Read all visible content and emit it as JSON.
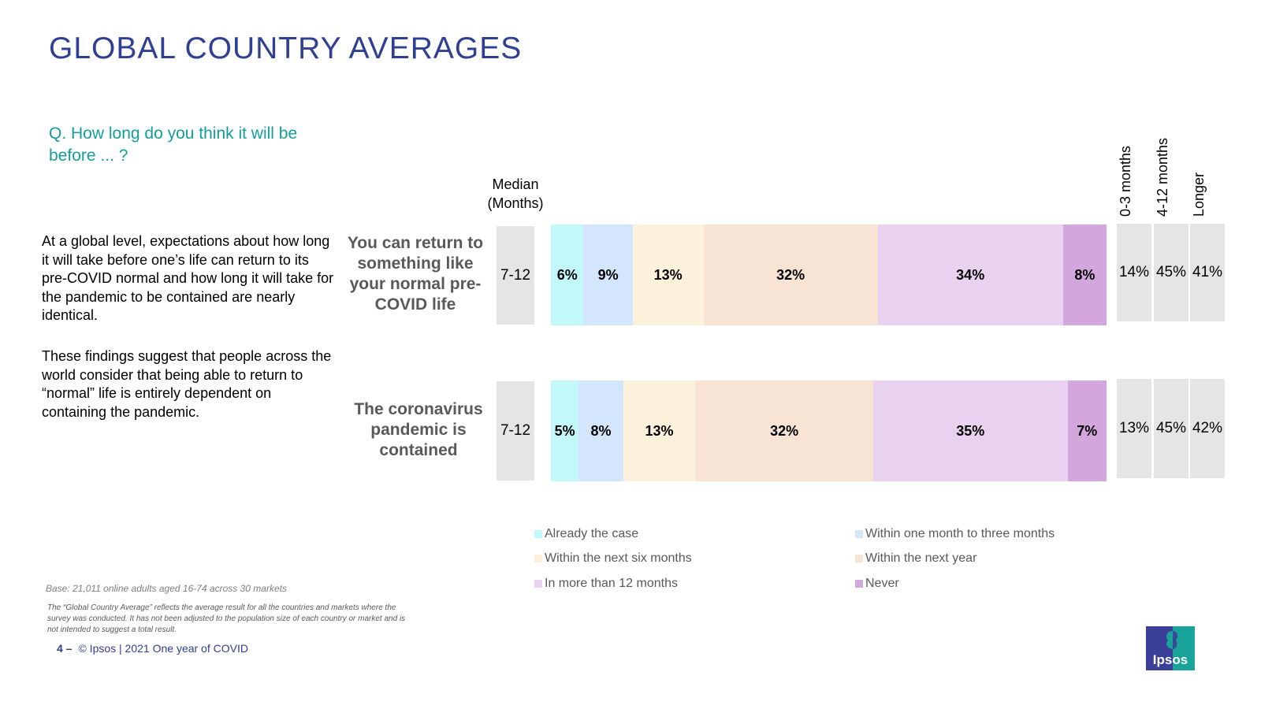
{
  "header": {
    "title": "GLOBAL COUNTRY AVERAGES",
    "question": "Q. How long do you think it will be before ... ?"
  },
  "commentary": {
    "paragraph1": "At a global level, expectations about how long it will take before one’s life can return to its pre-COVID normal and how long it will take for the pandemic to be contained are nearly identical.",
    "paragraph2": "These findings suggest that people across the world consider that being able to return to “normal” life is entirely dependent on containing the pandemic."
  },
  "table_headers": {
    "median_line1": "Median",
    "median_line2": "(Months)",
    "summary_columns": [
      "0-3 months",
      "4-12 months",
      "Longer"
    ]
  },
  "colors": {
    "already": "#c2f8fa",
    "one_to_three": "#d4e6fc",
    "six_months": "#fcf1da",
    "next_year": "#f8e4d4",
    "more_than_12": "#e8d2ef",
    "never": "#d3a6de",
    "summary_bg": "#e5e5e5",
    "title": "#2e3f94",
    "question": "#149e9a"
  },
  "chart_data": {
    "type": "bar",
    "orientation": "horizontal",
    "stacked": true,
    "title": "GLOBAL COUNTRY AVERAGES",
    "subtitle": "Q. How long do you think it will be before ... ?",
    "xlabel": "",
    "ylabel": "",
    "xlim": [
      0,
      100
    ],
    "unit": "%",
    "grid": false,
    "legend_position": "bottom",
    "categories": [
      "You can return to something like your normal pre-COVID life",
      "The coronavirus pandemic is contained"
    ],
    "series": [
      {
        "name": "Already the case",
        "color_key": "already",
        "values": [
          6,
          5
        ]
      },
      {
        "name": "Within one month to three months",
        "color_key": "one_to_three",
        "values": [
          9,
          8
        ]
      },
      {
        "name": "Within the next six months",
        "color_key": "six_months",
        "values": [
          13,
          13
        ]
      },
      {
        "name": "Within the next year",
        "color_key": "next_year",
        "values": [
          32,
          32
        ]
      },
      {
        "name": "In more than 12 months",
        "color_key": "more_than_12",
        "values": [
          34,
          35
        ]
      },
      {
        "name": "Never",
        "color_key": "never",
        "values": [
          8,
          7
        ]
      }
    ],
    "median_months": [
      "7-12",
      "7-12"
    ],
    "summary": {
      "columns": [
        "0-3 months",
        "4-12 months",
        "Longer"
      ],
      "rows": [
        [
          "14%",
          "45%",
          "41%"
        ],
        [
          "13%",
          "45%",
          "42%"
        ]
      ]
    },
    "legend_order": [
      "Already the case",
      "Within one month to three months",
      "Within the next six months",
      "Within the next year",
      "In more than 12 months",
      "Never"
    ]
  },
  "rows": [
    {
      "label": "You can return to something like your normal pre-COVID life",
      "median": "7-12"
    },
    {
      "label": "The coronavirus pandemic is contained",
      "median": "7-12"
    }
  ],
  "notes": {
    "base": "Base: 21,011 online adults aged 16-74 across 30 markets",
    "footnote": "The “Global  Country Average” reflects the average result for all the countries and markets where the survey was conducted. It has not been adjusted to the population size of each country or market and is not intended to suggest a total result."
  },
  "footer": {
    "page_number": "4 –",
    "text": "© Ipsos | 2021 One year of COVID"
  },
  "logo": {
    "text": "Ipsos",
    "icon": "ipsos-logo-icon"
  }
}
